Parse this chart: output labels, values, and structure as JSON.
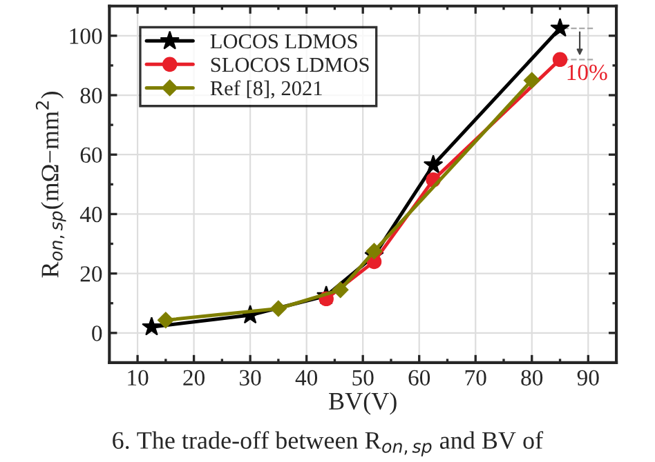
{
  "chart_data": {
    "type": "line",
    "xlabel": "BV(V)",
    "ylabel": "R$_{on,sp}$(mΩ−mm$^{2}$)",
    "xlim": [
      5,
      95
    ],
    "xticks": [
      10,
      20,
      30,
      40,
      50,
      60,
      70,
      80,
      90
    ],
    "ylim": [
      -10,
      110
    ],
    "yticks": [
      0,
      20,
      40,
      60,
      80,
      100
    ],
    "grid": true,
    "legend": "top left",
    "series": [
      {
        "name": "LOCOS LDMOS",
        "color": "#000000",
        "marker": "star",
        "x": [
          12.5,
          30,
          43.5,
          52,
          62.5,
          85
        ],
        "values": [
          2,
          6,
          12.5,
          26,
          56.5,
          102.5
        ]
      },
      {
        "name": "SLOCOS LDMOS",
        "color": "#e8202a",
        "marker": "circle",
        "x": [
          43.5,
          52,
          62.5,
          85
        ],
        "values": [
          11.5,
          24,
          51.5,
          92
        ]
      },
      {
        "name": "Ref [8], 2021",
        "color": "#7f7f00",
        "marker": "diamond",
        "x": [
          15,
          35,
          46,
          52,
          80
        ],
        "values": [
          4.3,
          8.2,
          14.5,
          27.5,
          85
        ]
      }
    ],
    "annotations": [
      {
        "text": "10%",
        "x": 85,
        "y": 92
      },
      "6. The trade-off between R$_{on,sp}$ and BV of"
    ]
  }
}
